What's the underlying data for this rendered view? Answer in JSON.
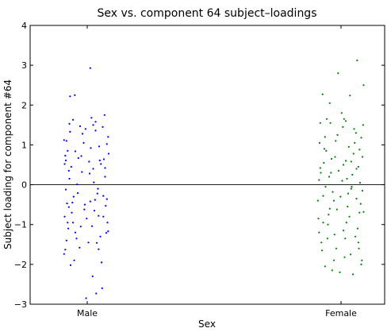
{
  "chart_data": {
    "type": "scatter",
    "title": "Sex vs. component 64 subject–loadings",
    "xlabel": "Sex",
    "ylabel": "Subject loading for component #64",
    "categories": [
      "Male",
      "Female"
    ],
    "ylim": [
      -3,
      4
    ],
    "yticks": [
      "−3",
      "−2",
      "−1",
      "0",
      "1",
      "2",
      "3",
      "4"
    ],
    "zero_line": true,
    "grid": false,
    "series": [
      {
        "category": "Male",
        "color": "#0000ff",
        "points": [
          [
            -0.38,
            0.52
          ],
          [
            -0.31,
            0.35
          ],
          [
            -0.12,
            1.47
          ],
          [
            0.05,
            2.93
          ],
          [
            -0.29,
            2.22
          ],
          [
            0.1,
            1.5
          ],
          [
            -0.35,
            1.1
          ],
          [
            -0.2,
            0.84
          ],
          [
            0.21,
            0.61
          ],
          [
            0.3,
            0.42
          ],
          [
            -0.36,
            -0.12
          ],
          [
            -0.25,
            -0.45
          ],
          [
            -0.05,
            -0.62
          ],
          [
            0.13,
            -0.38
          ],
          [
            0.27,
            -0.8
          ],
          [
            -0.33,
            -0.95
          ],
          [
            -0.18,
            -1.35
          ],
          [
            0.02,
            -1.45
          ],
          [
            0.19,
            -1.62
          ],
          [
            0.32,
            -1.21
          ],
          [
            -0.39,
            -1.74
          ],
          [
            -0.22,
            -1.9
          ],
          [
            0.09,
            -2.3
          ],
          [
            0.25,
            -2.6
          ],
          [
            -0.02,
            -2.85
          ],
          [
            -0.28,
            -2.02
          ],
          [
            0.15,
            -2.73
          ],
          [
            -0.37,
            0.73
          ],
          [
            -0.15,
            0.67
          ],
          [
            0.28,
            0.64
          ],
          [
            -0.24,
            1.63
          ],
          [
            0.14,
            1.36
          ],
          [
            0.35,
            1.2
          ],
          [
            -0.3,
            1.53
          ],
          [
            -0.08,
            1.28
          ],
          [
            0.06,
            0.92
          ],
          [
            -0.34,
            -0.47
          ],
          [
            0.17,
            -0.22
          ],
          [
            0.33,
            -0.36
          ],
          [
            -0.11,
            -1.05
          ],
          [
            0.22,
            -1.3
          ],
          [
            -0.26,
            -0.7
          ],
          [
            0.04,
            0.28
          ],
          [
            -0.39,
            1.12
          ],
          [
            0.29,
            1.75
          ],
          [
            -0.21,
            2.25
          ],
          [
            0.11,
            0.06
          ],
          [
            -0.04,
            -0.5
          ],
          [
            0.36,
            0.78
          ],
          [
            -0.32,
            -1.1
          ],
          [
            0.24,
            -1.95
          ],
          [
            -0.16,
            -0.21
          ],
          [
            0.08,
            -1.04
          ],
          [
            -0.27,
            0.45
          ],
          [
            0.31,
            -0.53
          ],
          [
            -0.06,
            1.05
          ],
          [
            0.18,
            -0.1
          ],
          [
            -0.38,
            -0.8
          ],
          [
            0.03,
            0.58
          ],
          [
            -0.13,
            -1.58
          ],
          [
            0.26,
            1.45
          ],
          [
            -0.3,
            0.15
          ],
          [
            0.12,
            -0.65
          ],
          [
            -0.35,
            -1.4
          ],
          [
            0.34,
            -0.95
          ],
          [
            -0.09,
            0.32
          ],
          [
            0.2,
            0.96
          ],
          [
            -0.23,
            -0.3
          ],
          [
            0.07,
            1.68
          ],
          [
            -0.37,
            -1.63
          ],
          [
            0.3,
            0.2
          ],
          [
            -0.17,
            0.01
          ],
          [
            0.16,
            -1.46
          ],
          [
            -0.01,
            -0.85
          ],
          [
            0.35,
            -1.17
          ],
          [
            -0.29,
            1.33
          ],
          [
            0.1,
            0.4
          ],
          [
            -0.2,
            -1.2
          ],
          [
            0.23,
            0.52
          ],
          [
            -0.33,
            0.85
          ],
          [
            0.05,
            -0.42
          ],
          [
            -0.1,
            0.72
          ],
          [
            0.27,
            -0.28
          ],
          [
            -0.36,
            0.61
          ],
          [
            0.14,
            1.58
          ],
          [
            -0.24,
            -0.95
          ],
          [
            0.33,
            1.02
          ],
          [
            -0.03,
            1.4
          ],
          [
            0.19,
            -0.78
          ],
          [
            -0.31,
            -0.56
          ]
        ]
      },
      {
        "category": "Female",
        "color": "#008000",
        "points": [
          [
            0.27,
            3.12
          ],
          [
            -0.05,
            2.8
          ],
          [
            0.38,
            2.5
          ],
          [
            0.15,
            2.24
          ],
          [
            -0.31,
            2.27
          ],
          [
            -0.18,
            1.55
          ],
          [
            0.05,
            1.65
          ],
          [
            0.22,
            1.4
          ],
          [
            0.34,
            1.18
          ],
          [
            -0.36,
            1.05
          ],
          [
            -0.25,
            0.85
          ],
          [
            -0.1,
            0.7
          ],
          [
            0.08,
            0.6
          ],
          [
            0.29,
            0.45
          ],
          [
            -0.34,
            0.3
          ],
          [
            -0.2,
            0.2
          ],
          [
            0.02,
            0.1
          ],
          [
            0.18,
            -0.05
          ],
          [
            0.36,
            -0.15
          ],
          [
            -0.3,
            -0.28
          ],
          [
            -0.12,
            -0.4
          ],
          [
            0.11,
            -0.55
          ],
          [
            0.31,
            -0.7
          ],
          [
            -0.38,
            -0.85
          ],
          [
            -0.22,
            -1.0
          ],
          [
            0.04,
            -1.15
          ],
          [
            0.24,
            -1.3
          ],
          [
            -0.33,
            -1.45
          ],
          [
            -0.08,
            -1.6
          ],
          [
            0.16,
            -1.75
          ],
          [
            0.35,
            -1.9
          ],
          [
            -0.27,
            -2.05
          ],
          [
            -0.02,
            -2.2
          ],
          [
            0.2,
            -2.25
          ],
          [
            -0.15,
            -2.15
          ],
          [
            0.3,
            -1.6
          ],
          [
            -0.37,
            -1.2
          ],
          [
            0.09,
            -0.95
          ],
          [
            -0.19,
            -0.6
          ],
          [
            0.26,
            -0.35
          ],
          [
            -0.29,
            0.55
          ],
          [
            0.13,
            0.95
          ],
          [
            -0.06,
            1.25
          ],
          [
            0.37,
            1.5
          ],
          [
            -0.24,
            1.65
          ],
          [
            0.01,
            1.8
          ],
          [
            0.21,
            0.78
          ],
          [
            -0.35,
            0.42
          ],
          [
            0.32,
            0.05
          ],
          [
            -0.14,
            -0.18
          ],
          [
            0.07,
            -1.35
          ],
          [
            -0.32,
            -1.65
          ],
          [
            0.28,
            -1.1
          ],
          [
            -0.04,
            0.35
          ],
          [
            0.17,
            0.58
          ],
          [
            -0.21,
            -0.75
          ],
          [
            0.33,
            -0.48
          ],
          [
            -0.09,
            1.1
          ],
          [
            0.12,
            -0.22
          ],
          [
            -0.28,
            0.9
          ],
          [
            0.25,
            1.3
          ],
          [
            -0.16,
            0.65
          ],
          [
            0.06,
            -1.82
          ],
          [
            -0.39,
            -0.4
          ],
          [
            0.19,
            0.25
          ],
          [
            -0.11,
            -1.25
          ],
          [
            0.36,
            0.7
          ],
          [
            -0.26,
            -0.05
          ],
          [
            0.03,
            1.45
          ],
          [
            0.29,
            -1.45
          ],
          [
            -0.35,
            1.55
          ],
          [
            0.14,
            -0.8
          ],
          [
            -0.07,
            -0.62
          ],
          [
            0.23,
            1.05
          ],
          [
            -0.3,
            -0.95
          ],
          [
            0.1,
            0.15
          ],
          [
            -0.19,
            2.05
          ],
          [
            0.34,
            -2.0
          ],
          [
            -0.01,
            -0.3
          ],
          [
            0.26,
            0.4
          ],
          [
            -0.23,
            -1.35
          ],
          [
            0.08,
            1.6
          ],
          [
            -0.37,
            0.12
          ],
          [
            0.31,
            0.88
          ],
          [
            -0.12,
            -1.9
          ],
          [
            0.17,
            -0.1
          ],
          [
            -0.27,
            1.2
          ],
          [
            0.04,
            0.5
          ],
          [
            0.38,
            -0.68
          ],
          [
            -0.17,
            0.3
          ]
        ]
      }
    ]
  }
}
